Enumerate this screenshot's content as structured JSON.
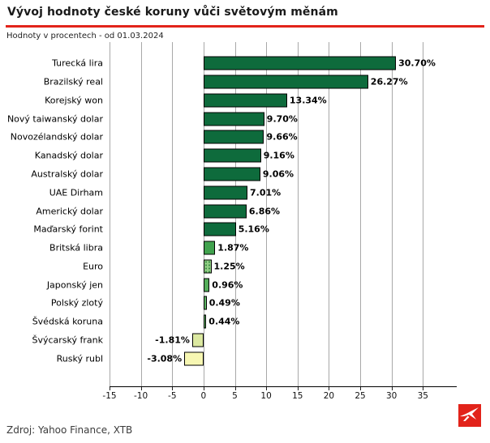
{
  "header": {
    "title": "Vývoj hodnoty české koruny vůči světovým měnám",
    "subtitle": "Hodnoty v procentech - od 01.03.2024"
  },
  "footer": {
    "source": "Zdroj: Yahoo Finance, XTB"
  },
  "logo": {
    "name": "XTB",
    "icon": "bird-swoosh-icon",
    "background": "#e2231a",
    "glyph_color": "#ffffff"
  },
  "colors": {
    "accent_line": "#e2231a",
    "grid": "#a8a8a8",
    "axis": "#000000",
    "positive_dark_green": "#0e6b3c",
    "negative_pale_yellow": "#f7f7b3"
  },
  "chart_data": {
    "type": "bar",
    "orientation": "horizontal",
    "title": "Vývoj hodnoty české koruny vůči světovým měnám",
    "subtitle": "Hodnoty v procentech - od 01.03.2024",
    "xlabel": "",
    "ylabel": "",
    "grid": true,
    "legend": false,
    "xlim": [
      -15,
      40.4
    ],
    "xticks": [
      -15,
      -10,
      -5,
      0,
      5,
      10,
      15,
      20,
      25,
      30,
      35
    ],
    "xtick_labels": [
      "-15",
      "-10",
      "-5",
      "0",
      "5",
      "10",
      "15",
      "20",
      "25",
      "30",
      "35"
    ],
    "categories": [
      "Turecká lira",
      "Brazilský real",
      "Korejský won",
      "Nový taiwanský dolar",
      "Novozélandský dolar",
      "Kanadský dolar",
      "Australský dolar",
      "UAE Dirham",
      "Americký dolar",
      "Maďarský forint",
      "Britská libra",
      "Euro",
      "Japonský jen",
      "Polský zlotý",
      "Švédská koruna",
      "Švýcarský frank",
      "Ruský rubl"
    ],
    "values": [
      30.7,
      26.27,
      13.34,
      9.7,
      9.66,
      9.16,
      9.06,
      7.01,
      6.86,
      5.16,
      1.87,
      1.25,
      0.96,
      0.49,
      0.44,
      -1.81,
      -3.08
    ],
    "value_labels": [
      "30.70%",
      "26.27%",
      "13.34%",
      "9.70%",
      "9.66%",
      "9.16%",
      "9.06%",
      "7.01%",
      "6.86%",
      "5.16%",
      "1.87%",
      "1.25%",
      "0.96%",
      "0.49%",
      "0.44%",
      "-1.81%",
      "-3.08%"
    ],
    "bar_colors": [
      "#0e6b3c",
      "#0e6b3c",
      "#0e6b3c",
      "#0e6b3c",
      "#0e6b3c",
      "#0e6b3c",
      "#0e6b3c",
      "#0e6b3c",
      "#0e6b3c",
      "#0e6b3c",
      "#41a24e",
      "#93cf85",
      "#55ae5b",
      "#5db463",
      "#63b868",
      "#dce9a1",
      "#f7f7b3"
    ],
    "hatched": [
      false,
      false,
      false,
      false,
      false,
      false,
      false,
      false,
      false,
      false,
      false,
      true,
      false,
      false,
      false,
      false,
      false
    ]
  }
}
